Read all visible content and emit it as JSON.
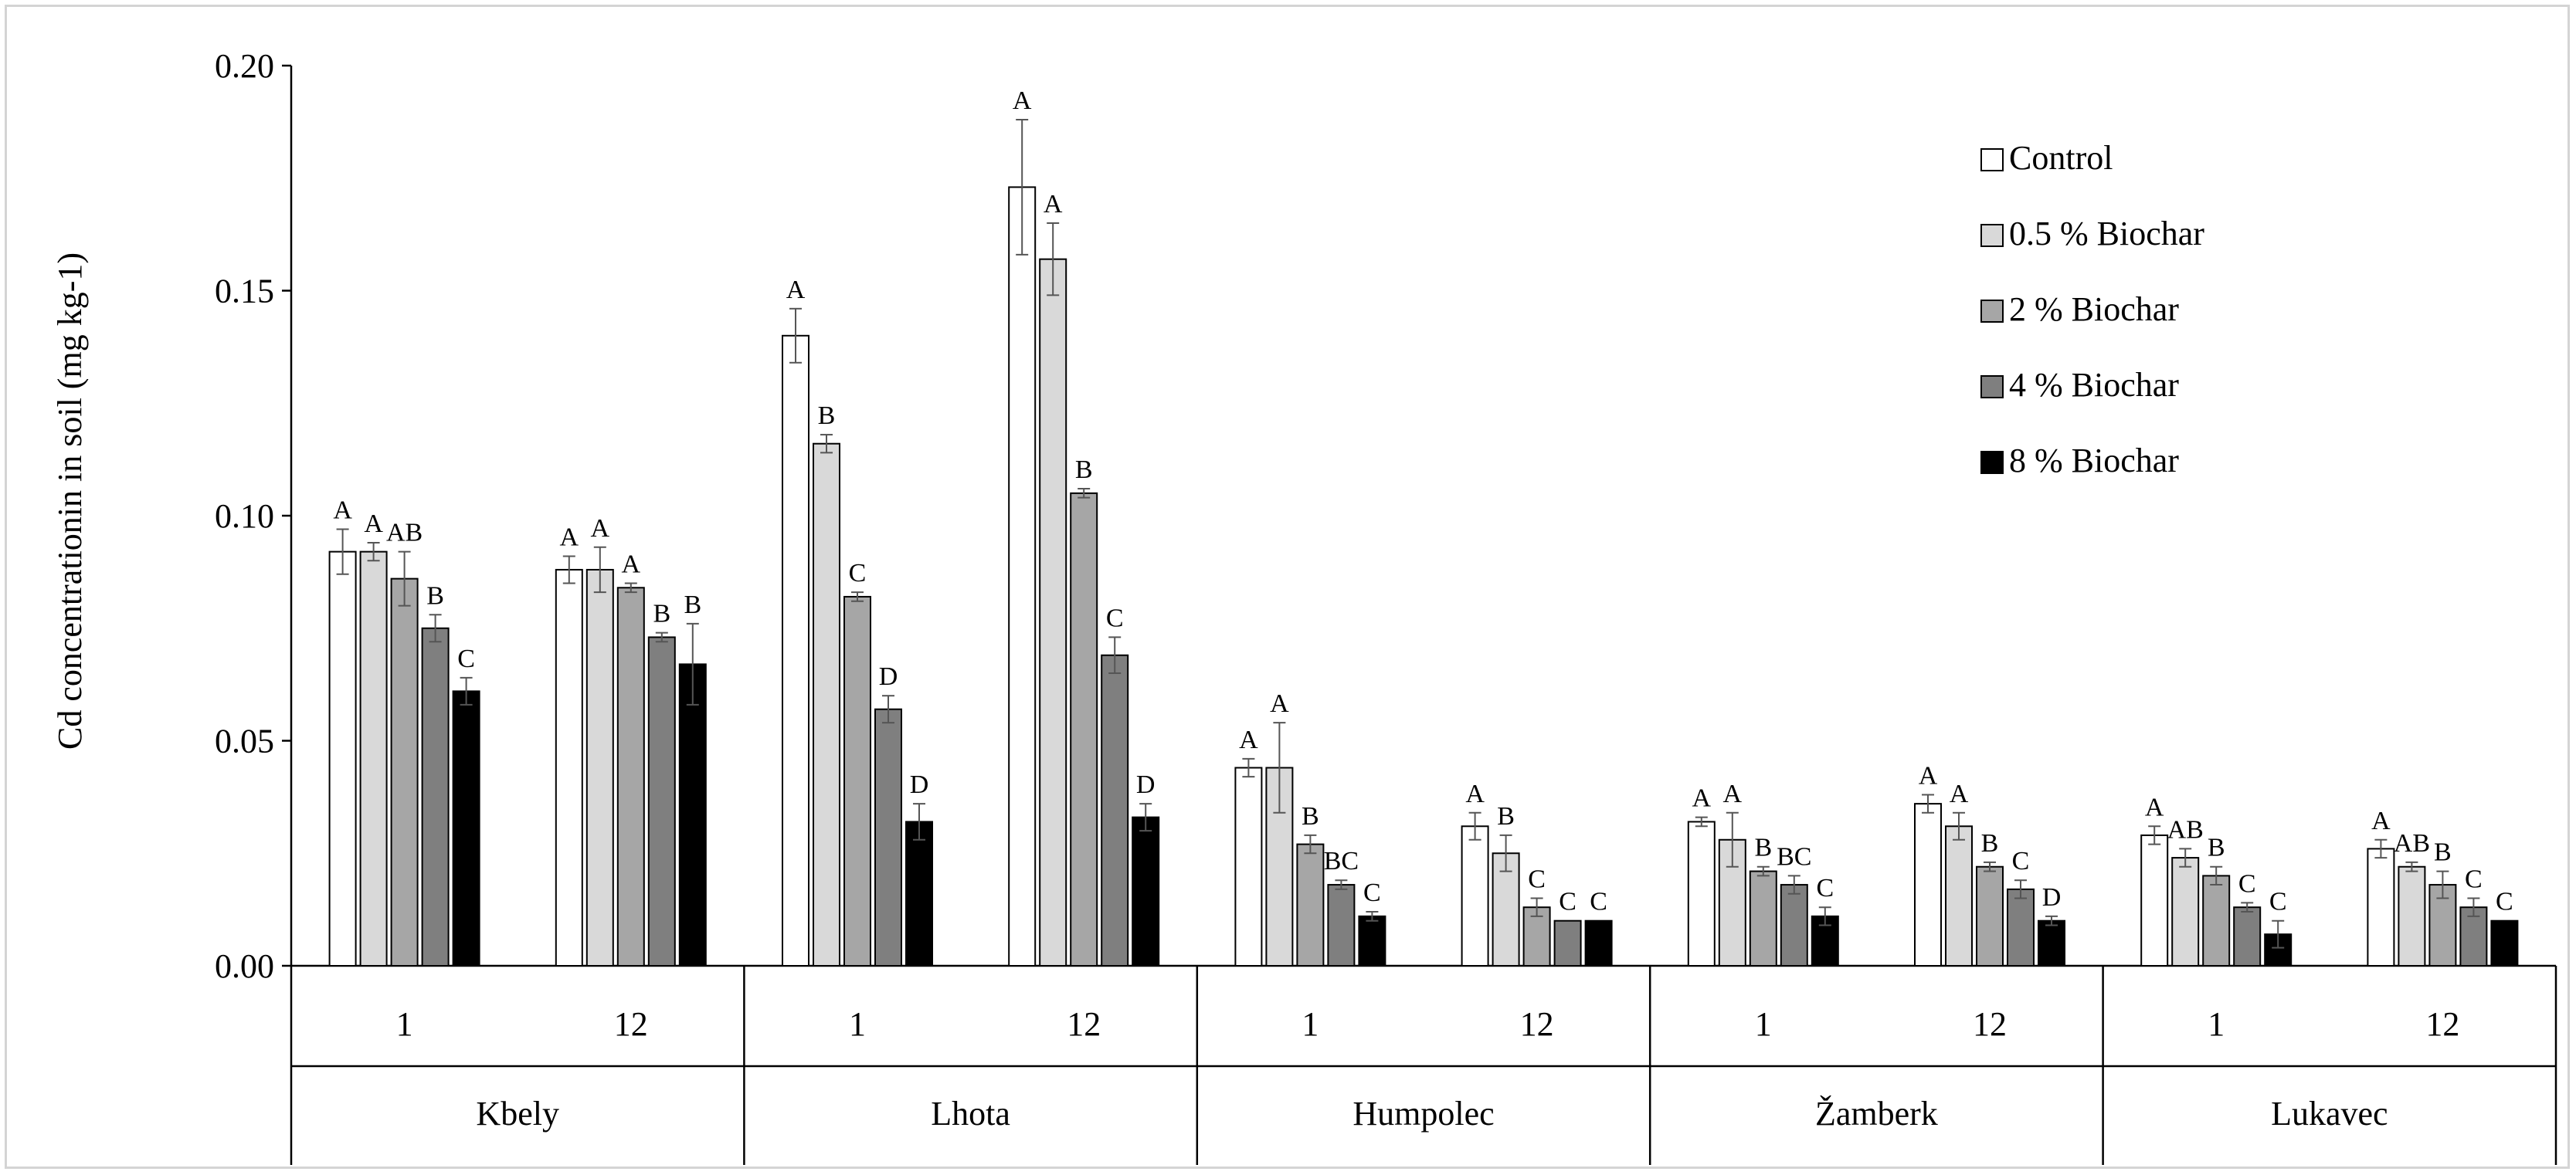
{
  "chart_data": {
    "type": "bar",
    "ylabel": "Cd concentrationin in soil (mg kg-1)",
    "xlabel": "",
    "ylim": [
      0,
      0.2
    ],
    "yticks": [
      "0.00",
      "0.05",
      "0.10",
      "0.15",
      "0.20"
    ],
    "grid": false,
    "legend_position": "top-right",
    "sites": [
      "Kbely",
      "Lhota",
      "Humpolec",
      "Žamberk",
      "Lukavec"
    ],
    "times": [
      "1",
      "12"
    ],
    "series": [
      {
        "name": "Control",
        "color": "#ffffff",
        "values": [
          0.092,
          0.088,
          0.14,
          0.173,
          0.044,
          0.031,
          0.032,
          0.036,
          0.029,
          0.026
        ],
        "errors": [
          0.005,
          0.003,
          0.006,
          0.015,
          0.002,
          0.003,
          0.001,
          0.002,
          0.002,
          0.002
        ],
        "letters": [
          "A",
          "A",
          "A",
          "A",
          "A",
          "A",
          "A",
          "A",
          "A",
          "A"
        ]
      },
      {
        "name": "0.5 % Biochar",
        "color": "#d9d9d9",
        "values": [
          0.092,
          0.088,
          0.116,
          0.157,
          0.044,
          0.025,
          0.028,
          0.031,
          0.024,
          0.022
        ],
        "errors": [
          0.002,
          0.005,
          0.002,
          0.008,
          0.01,
          0.004,
          0.006,
          0.003,
          0.002,
          0.001
        ],
        "letters": [
          "A",
          "A",
          "B",
          "A",
          "A",
          "B",
          "A",
          "A",
          "AB",
          "AB"
        ]
      },
      {
        "name": "2 % Biochar",
        "color": "#a6a6a6",
        "values": [
          0.086,
          0.084,
          0.082,
          0.105,
          0.027,
          0.013,
          0.021,
          0.022,
          0.02,
          0.018
        ],
        "errors": [
          0.006,
          0.001,
          0.001,
          0.001,
          0.002,
          0.002,
          0.001,
          0.001,
          0.002,
          0.003
        ],
        "letters": [
          "AB",
          "A",
          "C",
          "B",
          "B",
          "C",
          "B",
          "B",
          "B",
          "B"
        ]
      },
      {
        "name": "4 % Biochar",
        "color": "#7f7f7f",
        "values": [
          0.075,
          0.073,
          0.057,
          0.069,
          0.018,
          0.01,
          0.018,
          0.017,
          0.013,
          0.013
        ],
        "errors": [
          0.003,
          0.001,
          0.003,
          0.004,
          0.001,
          0.0,
          0.002,
          0.002,
          0.001,
          0.002
        ],
        "letters": [
          "B",
          "B",
          "D",
          "C",
          "BC",
          "C",
          "BC",
          "C",
          "C",
          "C"
        ]
      },
      {
        "name": "8 % Biochar",
        "color": "#000000",
        "values": [
          0.061,
          0.067,
          0.032,
          0.033,
          0.011,
          0.01,
          0.011,
          0.01,
          0.007,
          0.01
        ],
        "errors": [
          0.003,
          0.009,
          0.004,
          0.003,
          0.001,
          0.0,
          0.002,
          0.001,
          0.003,
          0.0
        ],
        "letters": [
          "C",
          "B",
          "D",
          "D",
          "C",
          "C",
          "C",
          "D",
          "C",
          "C"
        ]
      }
    ]
  }
}
